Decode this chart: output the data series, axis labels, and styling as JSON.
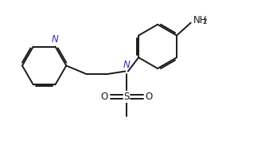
{
  "bg_color": "#ffffff",
  "line_color": "#1a1a1a",
  "text_color": "#1a1a1a",
  "lw": 1.4,
  "figsize": [
    3.38,
    2.11
  ],
  "dpi": 100,
  "atoms": {
    "N_label": "N",
    "S_label": "S",
    "O_label": "O",
    "N_py_label": "N",
    "NH2_label": "NH",
    "NH2_sub": "2"
  },
  "layout": {
    "xlim": [
      0,
      9.5
    ],
    "ylim": [
      0,
      5.8
    ]
  }
}
